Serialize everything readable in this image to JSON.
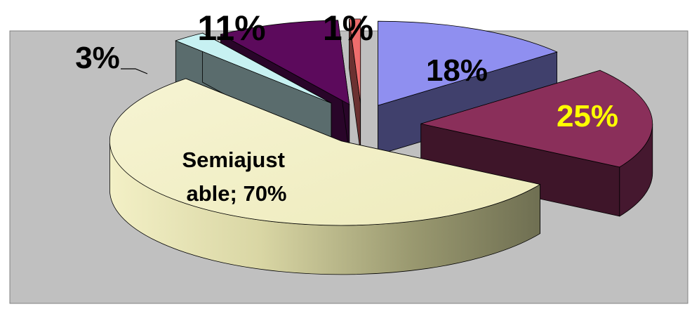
{
  "chart_data": {
    "type": "pie",
    "style": "3d-exploded",
    "slices": [
      {
        "label": "",
        "value": 18,
        "data_label": "18%",
        "color": "#8f8ff0"
      },
      {
        "label": "",
        "value": 25,
        "data_label": "25%",
        "color": "#8a2f5a"
      },
      {
        "label": "Semiajustable",
        "value": 70,
        "data_label": "Semiajust\nable; 70%",
        "color": "#f3f0c6"
      },
      {
        "label": "",
        "value": 3,
        "data_label": "3%",
        "color": "#c7f1f2"
      },
      {
        "label": "",
        "value": 11,
        "data_label": "11%",
        "color": "#5c0a5c"
      },
      {
        "label": "",
        "value": 1,
        "data_label": "1%",
        "color": "#ee6d6d"
      }
    ],
    "label_colors": {
      "default": "#000000",
      "highlight": "#ffff00"
    },
    "plot_area_color": "#c0c0c0",
    "legend": "none"
  }
}
